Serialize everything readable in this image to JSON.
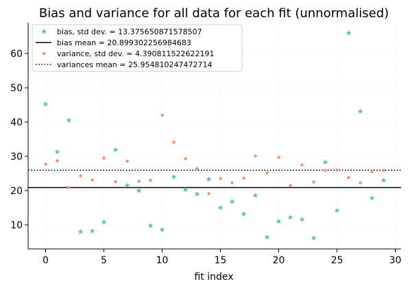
{
  "chart_data": {
    "type": "scatter",
    "title": "Bias and variance for all data for each fit (unnormalised)",
    "xlabel": "fit index",
    "ylabel": "",
    "xlim": [
      -1.5,
      30.5
    ],
    "ylim": [
      3.0,
      69.0
    ],
    "xticks": [
      0,
      5,
      10,
      15,
      20,
      25,
      30
    ],
    "yticks": [
      10,
      20,
      30,
      40,
      50,
      60
    ],
    "grid": true,
    "legend_position": "top-left",
    "colors": {
      "bias": "#66c2a5",
      "variance": "#fc8d62",
      "line": "#000000"
    },
    "series": [
      {
        "name": "bias, std dev. = 13.375650871578507",
        "marker": "star",
        "x": [
          0,
          1,
          2,
          3,
          4,
          5,
          6,
          7,
          8,
          9,
          10,
          11,
          12,
          13,
          14,
          15,
          16,
          17,
          18,
          19,
          20,
          21,
          22,
          23,
          24,
          25,
          26,
          27,
          28,
          29
        ],
        "values": [
          45.2,
          31.3,
          40.5,
          8.0,
          8.2,
          10.8,
          31.9,
          21.5,
          20.0,
          9.8,
          8.6,
          24.0,
          20.3,
          19.0,
          23.3,
          15.0,
          16.8,
          13.2,
          18.6,
          6.4,
          11.0,
          12.2,
          11.6,
          6.2,
          28.3,
          14.2,
          66.0,
          43.1,
          17.8,
          23.0
        ]
      },
      {
        "name": "bias mean = 20.899302256984683",
        "type": "hline",
        "style": "solid",
        "y": 20.899302256984683
      },
      {
        "name": "variance, std dev. = 4.390811522622191",
        "marker": "dot",
        "x": [
          0,
          1,
          2,
          3,
          4,
          5,
          6,
          7,
          8,
          9,
          10,
          11,
          12,
          13,
          14,
          15,
          16,
          17,
          18,
          19,
          20,
          21,
          22,
          23,
          24,
          25,
          26,
          27,
          28,
          29
        ],
        "values": [
          27.7,
          28.7,
          20.9,
          24.3,
          23.1,
          29.5,
          22.6,
          28.6,
          22.7,
          23.0,
          42.0,
          34.1,
          29.3,
          26.4,
          19.1,
          23.5,
          22.3,
          23.6,
          30.1,
          25.2,
          29.7,
          21.5,
          27.5,
          22.5,
          25.9,
          26.0,
          23.8,
          22.3,
          25.6,
          25.9
        ]
      },
      {
        "name": "variances mean = 25.954810247472714",
        "type": "hline",
        "style": "dotted",
        "y": 25.954810247472714
      }
    ]
  }
}
